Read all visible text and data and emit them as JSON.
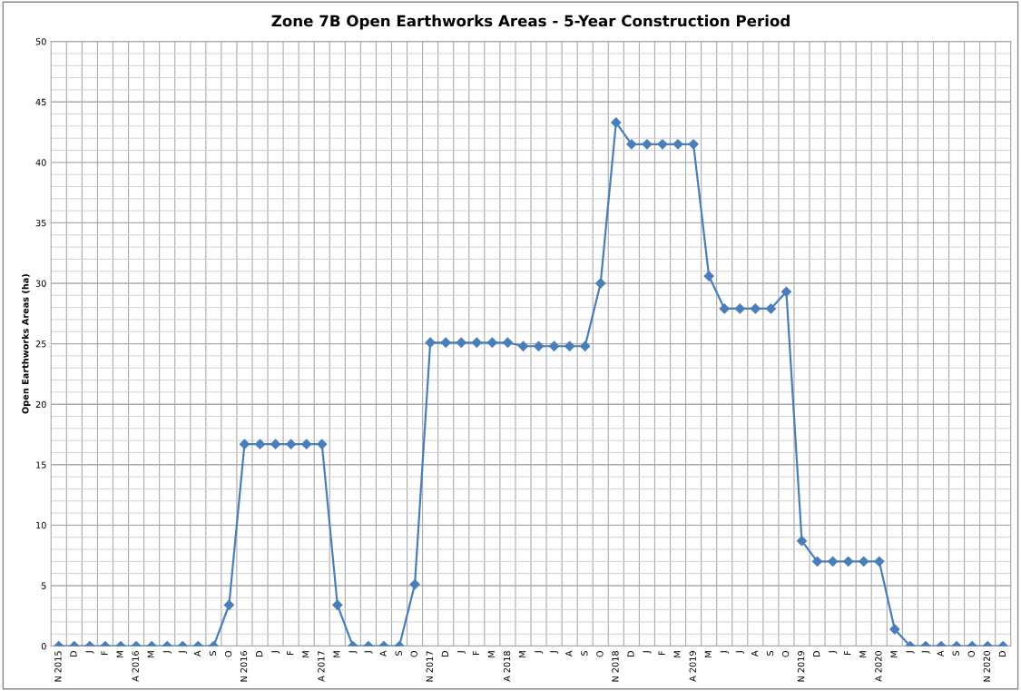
{
  "chart_data": {
    "type": "line",
    "title": "Zone 7B Open Earthworks Areas - 5-Year Construction Period",
    "ylabel": "Open Earthworks Areas (ha)",
    "categories": [
      "N 2015",
      "D",
      "J",
      "F",
      "M",
      "A 2016",
      "M",
      "J",
      "J",
      "A",
      "S",
      "O",
      "N 2016",
      "D",
      "J",
      "F",
      "M",
      "A 2017",
      "M",
      "J",
      "J",
      "A",
      "S",
      "O",
      "N 2017",
      "D",
      "J",
      "F",
      "M",
      "A 2018",
      "M",
      "J",
      "J",
      "A",
      "S",
      "O",
      "N 2018",
      "D",
      "J",
      "F",
      "M",
      "A 2019",
      "M",
      "J",
      "J",
      "A",
      "S",
      "O",
      "N 2019",
      "D",
      "J",
      "F",
      "M",
      "A 2020",
      "M",
      "J",
      "J",
      "A",
      "S",
      "O",
      "N 2020",
      "D"
    ],
    "values": [
      0,
      0,
      0,
      0,
      0,
      0,
      0,
      0,
      0,
      0,
      0,
      3.4,
      16.7,
      16.7,
      16.7,
      16.7,
      16.7,
      16.7,
      3.4,
      0,
      0,
      0,
      0,
      5.1,
      25.1,
      25.1,
      25.1,
      25.1,
      25.1,
      25.1,
      24.8,
      24.8,
      24.8,
      24.8,
      24.8,
      30,
      43.3,
      41.5,
      41.5,
      41.5,
      41.5,
      41.5,
      30.6,
      27.9,
      27.9,
      27.9,
      27.9,
      29.3,
      8.7,
      7,
      7,
      7,
      7,
      7,
      1.4,
      0,
      0,
      0,
      0,
      0,
      0,
      0
    ],
    "color": "#4a7ebb",
    "ylim": [
      0,
      50
    ],
    "yticks": [
      0,
      5,
      10,
      15,
      20,
      25,
      30,
      35,
      40,
      45,
      50
    ],
    "grid": true,
    "marker": "diamond",
    "line_style": "solid",
    "legend": false
  }
}
